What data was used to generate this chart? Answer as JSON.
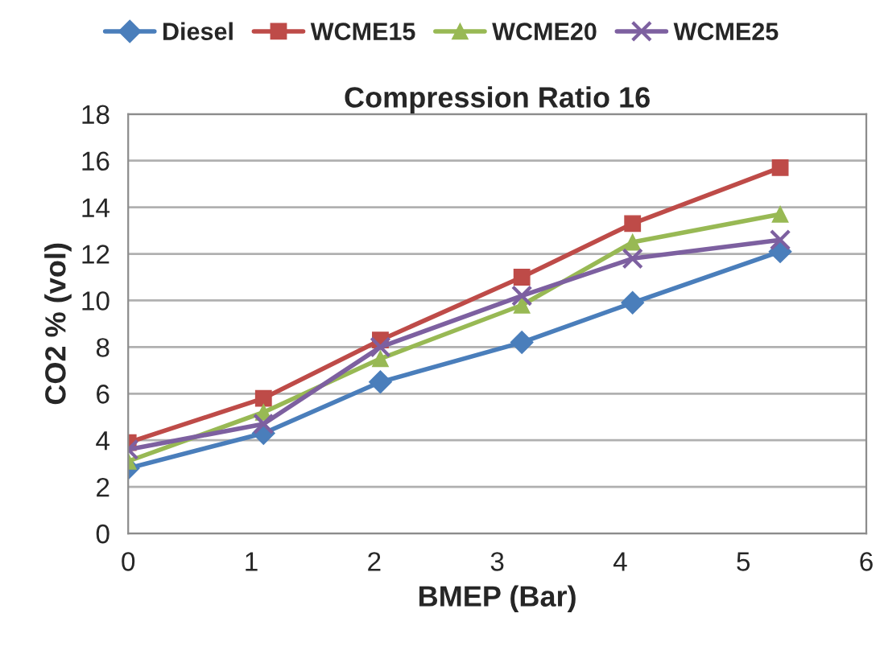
{
  "chart_data": {
    "type": "line",
    "title": "Compression Ratio 16",
    "xlabel": "BMEP (Bar)",
    "ylabel": "CO2 % (vol)",
    "x": [
      0,
      1.1,
      2.05,
      3.2,
      4.1,
      5.3
    ],
    "series": [
      {
        "name": "Diesel",
        "color": "#4a7ebb",
        "marker": "diamond",
        "values": [
          2.8,
          4.3,
          6.5,
          8.2,
          9.9,
          12.1
        ]
      },
      {
        "name": "WCME15",
        "color": "#be4b48",
        "marker": "square",
        "values": [
          3.9,
          5.8,
          8.3,
          11.0,
          13.3,
          15.7
        ]
      },
      {
        "name": "WCME20",
        "color": "#98b954",
        "marker": "triangle",
        "values": [
          3.1,
          5.2,
          7.5,
          9.8,
          12.5,
          13.7
        ]
      },
      {
        "name": "WCME25",
        "color": "#7d60a0",
        "marker": "cross",
        "values": [
          3.6,
          4.7,
          8.0,
          10.2,
          11.8,
          12.6
        ]
      }
    ],
    "xlim": [
      0,
      6
    ],
    "xticks": [
      0,
      1,
      2,
      3,
      4,
      5,
      6
    ],
    "ylim": [
      0,
      18
    ],
    "yticks": [
      0,
      2,
      4,
      6,
      8,
      10,
      12,
      14,
      16,
      18
    ],
    "grid": "y",
    "legend": "top"
  }
}
